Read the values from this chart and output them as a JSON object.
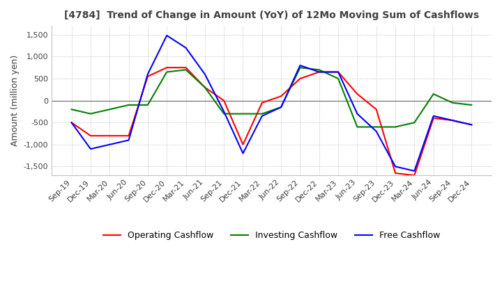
{
  "title": "[4784]  Trend of Change in Amount (YoY) of 12Mo Moving Sum of Cashflows",
  "ylabel": "Amount (million yen)",
  "ylim": [
    -1700,
    1700
  ],
  "yticks": [
    -1500,
    -1000,
    -500,
    0,
    500,
    1000,
    1500
  ],
  "legend_labels": [
    "Operating Cashflow",
    "Investing Cashflow",
    "Free Cashflow"
  ],
  "colors": [
    "#ff0000",
    "#008000",
    "#0000ff"
  ],
  "x_labels": [
    "Sep-19",
    "Dec-19",
    "Mar-20",
    "Jun-20",
    "Sep-20",
    "Dec-20",
    "Mar-21",
    "Jun-21",
    "Sep-21",
    "Dec-21",
    "Mar-22",
    "Jun-22",
    "Sep-22",
    "Dec-22",
    "Mar-23",
    "Jun-23",
    "Sep-23",
    "Dec-23",
    "Mar-24",
    "Jun-24",
    "Sep-24",
    "Dec-24"
  ],
  "operating": [
    -500,
    -800,
    -800,
    -800,
    550,
    750,
    750,
    300,
    0,
    -1000,
    -50,
    100,
    500,
    650,
    650,
    150,
    -200,
    -1650,
    -1700,
    -400,
    -450,
    -550
  ],
  "investing": [
    -200,
    -300,
    -200,
    -100,
    -100,
    650,
    700,
    300,
    -300,
    -300,
    -300,
    -150,
    750,
    700,
    500,
    -600,
    -600,
    -600,
    -500,
    150,
    -50,
    -100
  ],
  "free": [
    -500,
    -1100,
    -1000,
    -900,
    600,
    1480,
    1200,
    600,
    -250,
    -1200,
    -350,
    -150,
    800,
    650,
    650,
    -300,
    -700,
    -1500,
    -1600,
    -350,
    -450,
    -550
  ],
  "background_color": "#ffffff",
  "grid_color": "#b0b0b0",
  "title_color": "#404040",
  "zeroline_color": "#808080"
}
